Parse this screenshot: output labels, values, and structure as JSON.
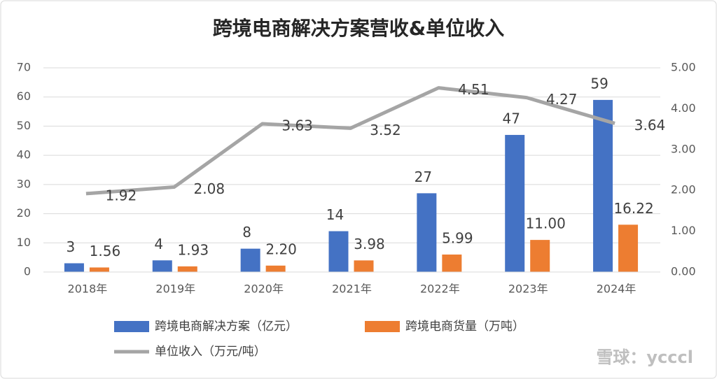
{
  "chart_data": {
    "type": "bar",
    "title": "跨境电商解决方案营收&单位收入",
    "categories": [
      "2018年",
      "2019年",
      "2020年",
      "2021年",
      "2022年",
      "2023年",
      "2024年"
    ],
    "series": [
      {
        "name": "跨境电商解决方案（亿元）",
        "color": "#4472c4",
        "type": "bar",
        "values": [
          3,
          4,
          8,
          14,
          27,
          47,
          59
        ]
      },
      {
        "name": "跨境电商货量（万吨）",
        "color": "#ed7d31",
        "type": "bar",
        "values": [
          1.56,
          1.93,
          2.2,
          3.98,
          5.99,
          11.0,
          16.22
        ],
        "value_labels": [
          "1.56",
          "1.93",
          "2.20",
          "3.98",
          "5.99",
          "11.00",
          "16.22"
        ]
      },
      {
        "name": "单位收入（万元/吨）",
        "color": "#a5a5a5",
        "type": "line",
        "axis": "y2",
        "values": [
          1.92,
          2.08,
          3.63,
          3.52,
          4.51,
          4.27,
          3.64
        ]
      }
    ],
    "ylim": [
      0,
      70
    ],
    "yticks": [
      0,
      10,
      20,
      30,
      40,
      50,
      60,
      70
    ],
    "y2lim": [
      0,
      5
    ],
    "y2ticks": [
      {
        "value": 0,
        "label": "0.00"
      },
      {
        "value": 1,
        "label": "1.00"
      },
      {
        "value": 2,
        "label": "2.00"
      },
      {
        "value": 3,
        "label": "3.00"
      },
      {
        "value": 4,
        "label": "4.00"
      },
      {
        "value": 5,
        "label": "5.00"
      }
    ],
    "grid": true,
    "legend": "bottom",
    "watermark": "雪球：ycccl"
  }
}
